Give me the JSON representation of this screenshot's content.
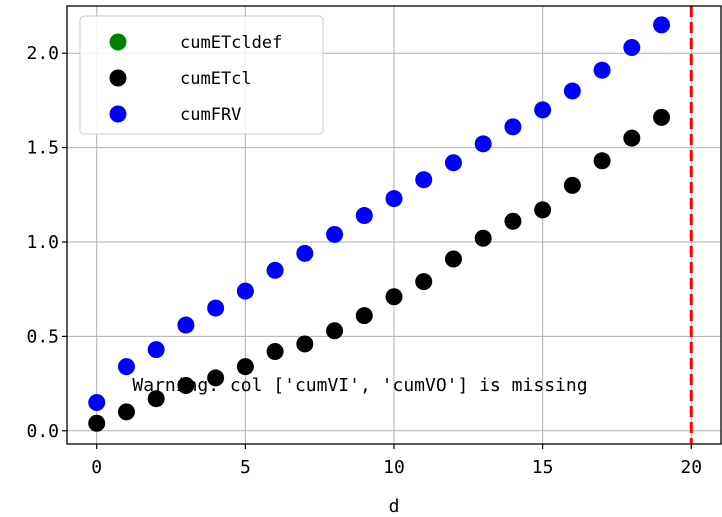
{
  "chart_data": {
    "type": "scatter",
    "xlabel": "d",
    "ylabel": "",
    "xlim": [
      -1,
      21
    ],
    "ylim": [
      -0.07,
      2.25
    ],
    "xticks": [
      0,
      5,
      10,
      15,
      20
    ],
    "xtick_labels": [
      "0",
      "5",
      "10",
      "15",
      "20"
    ],
    "yticks": [
      0.0,
      0.5,
      1.0,
      1.5,
      2.0
    ],
    "ytick_labels": [
      "0.0",
      "0.5",
      "1.0",
      "1.5",
      "2.0"
    ],
    "grid": true,
    "legend_position": "top-left",
    "vline": {
      "x": 20,
      "color": "#ff0000",
      "style": "dashed"
    },
    "annotation": {
      "text": "Warning: col ['cumVI', 'cumVO'] is missing",
      "x": 1.2,
      "y": 0.21
    },
    "series": [
      {
        "name": "cumETcldef",
        "color": "#008000",
        "x": [],
        "y": []
      },
      {
        "name": "cumETcl",
        "color": "#000000",
        "x": [
          0,
          1,
          2,
          3,
          4,
          5,
          6,
          7,
          8,
          9,
          10,
          11,
          12,
          13,
          14,
          15,
          16,
          17,
          18,
          19
        ],
        "y": [
          0.04,
          0.1,
          0.17,
          0.24,
          0.28,
          0.34,
          0.42,
          0.46,
          0.53,
          0.61,
          0.71,
          0.79,
          0.91,
          1.02,
          1.11,
          1.17,
          1.3,
          1.43,
          1.55,
          1.66
        ]
      },
      {
        "name": "cumFRV",
        "color": "#0000ff",
        "x": [
          0,
          1,
          2,
          3,
          4,
          5,
          6,
          7,
          8,
          9,
          10,
          11,
          12,
          13,
          14,
          15,
          16,
          17,
          18,
          19
        ],
        "y": [
          0.15,
          0.34,
          0.43,
          0.56,
          0.65,
          0.74,
          0.85,
          0.94,
          1.04,
          1.14,
          1.23,
          1.33,
          1.42,
          1.52,
          1.61,
          1.7,
          1.8,
          1.91,
          2.03,
          2.15
        ]
      }
    ]
  }
}
